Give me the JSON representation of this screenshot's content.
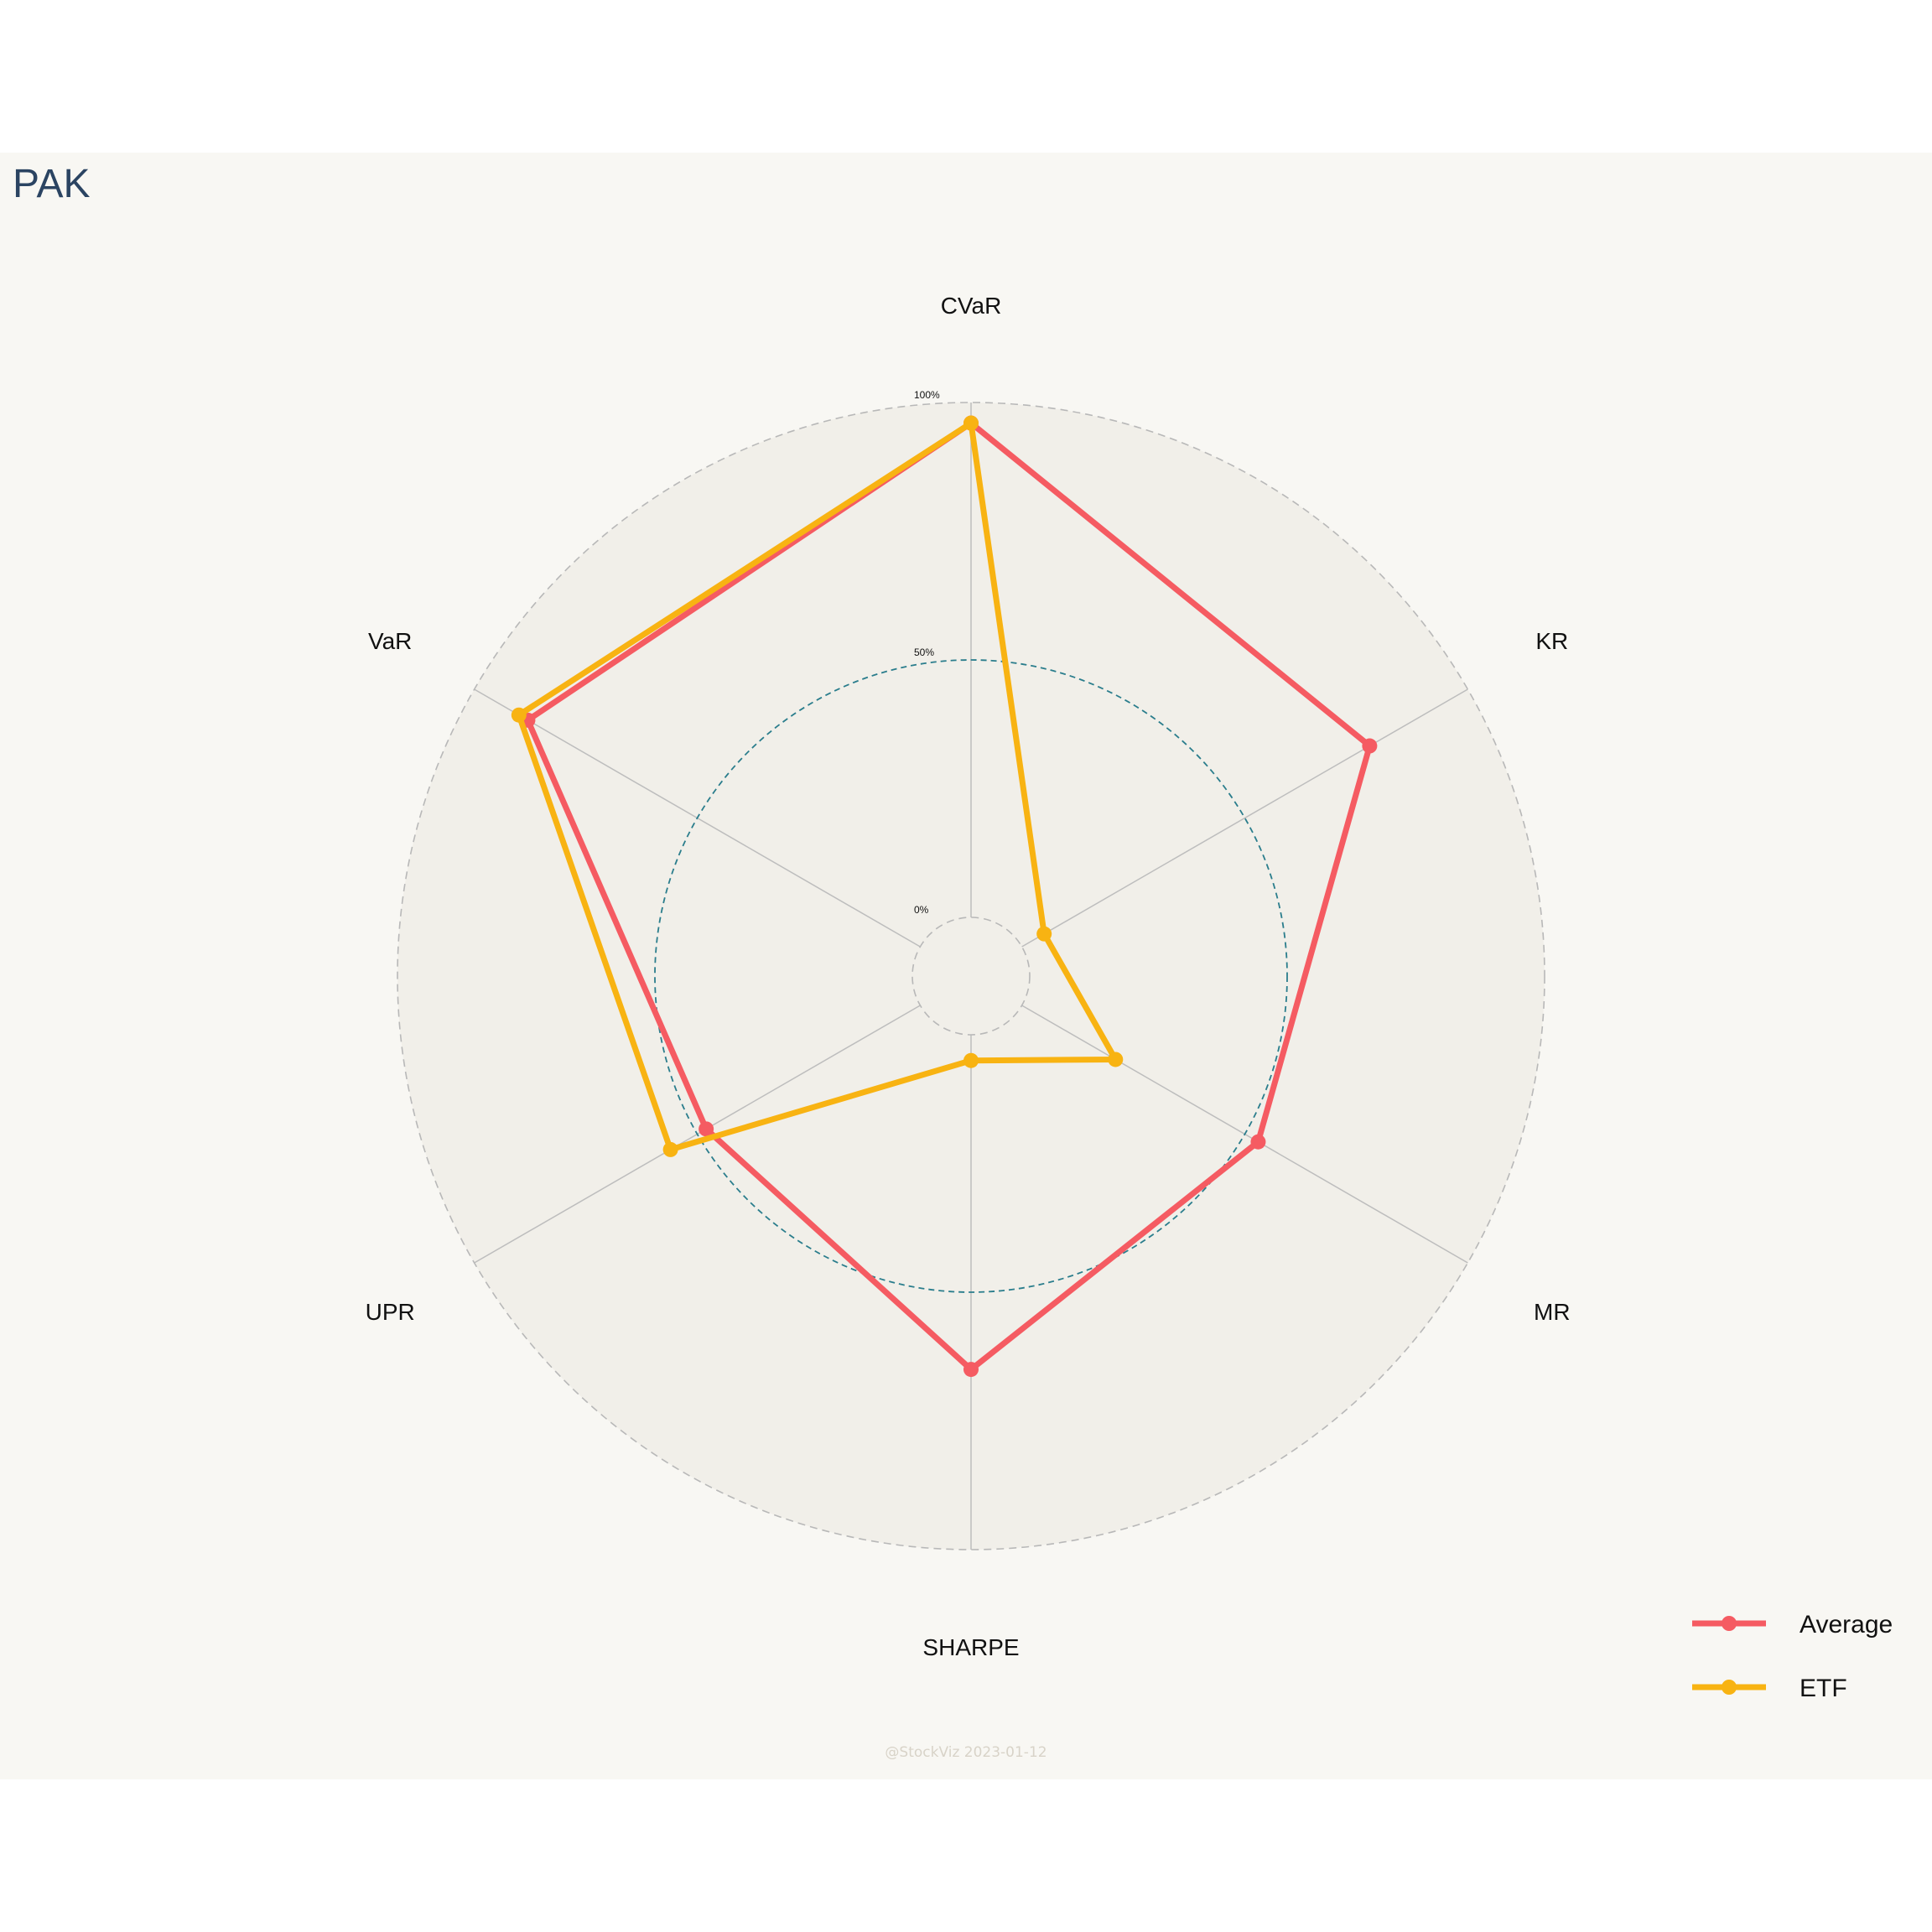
{
  "title": "PAK",
  "watermark": "@StockViz 2023-01-12",
  "chart_data": {
    "type": "radar",
    "axes": [
      "CVaR",
      "KR",
      "MR",
      "SHARPE",
      "UPR",
      "VaR"
    ],
    "rlim": [
      0,
      100
    ],
    "ticks": [
      {
        "value": 0,
        "label": "0%"
      },
      {
        "value": 50,
        "label": "50%"
      },
      {
        "value": 100,
        "label": "100%"
      }
    ],
    "series": [
      {
        "name": "Average",
        "color": "#f55b62",
        "values": [
          96,
          78,
          53,
          65,
          48,
          88
        ]
      },
      {
        "name": "ETF",
        "color": "#f8b312",
        "values": [
          96,
          5,
          21,
          5,
          56,
          90
        ]
      }
    ],
    "legend_position": "bottom-right"
  }
}
